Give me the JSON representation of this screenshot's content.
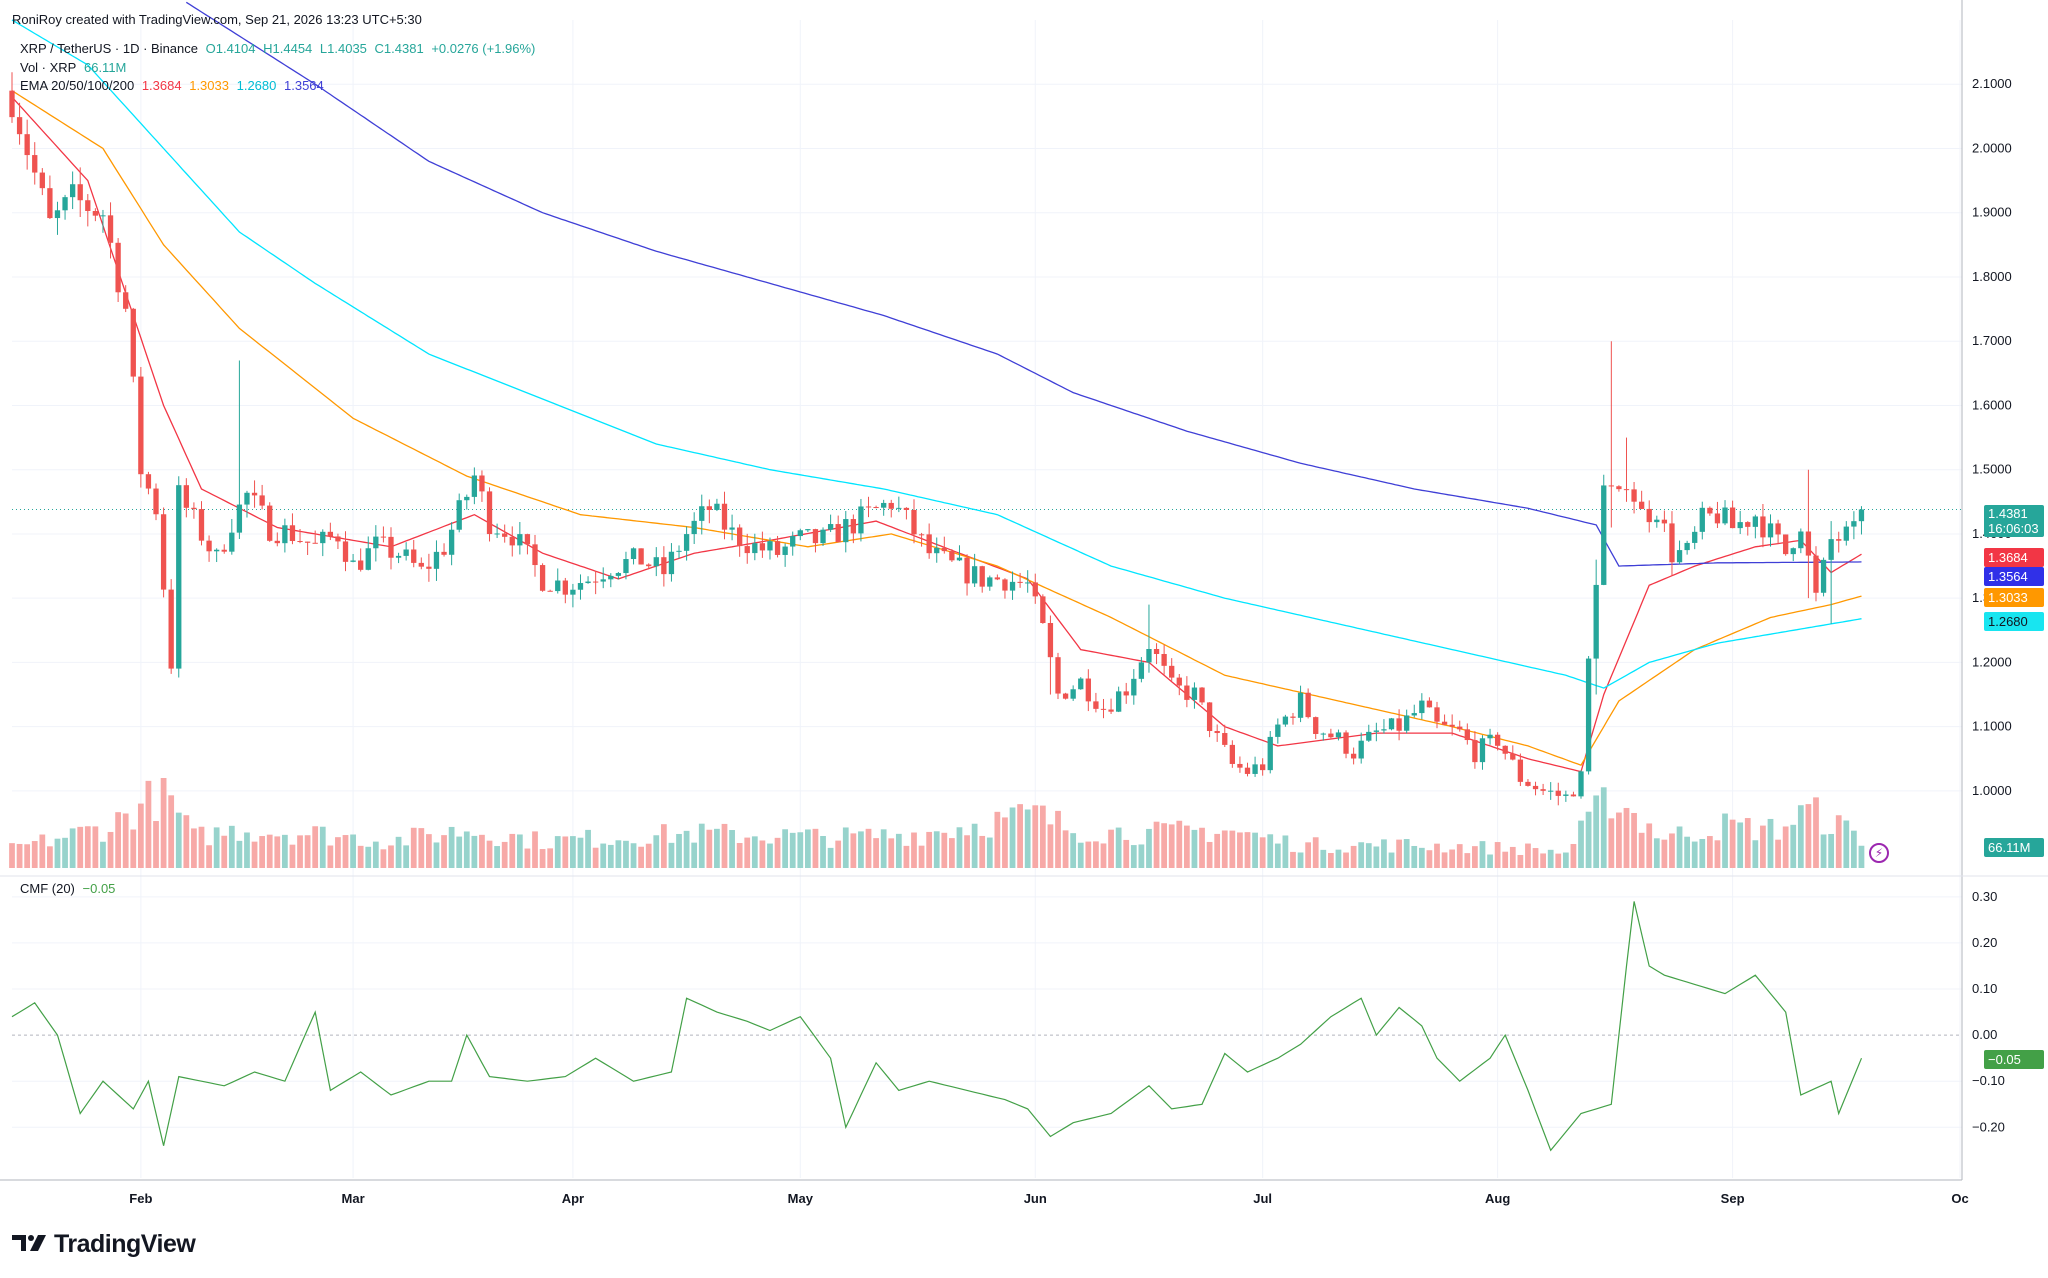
{
  "header": {
    "credit": "RoniRoy created with TradingView.com, Sep 21, 2026 13:23 UTC+5:30"
  },
  "legend": {
    "symbol": "XRP / TetherUS · 1D · Binance",
    "open": "O1.4104",
    "high": "H1.4454",
    "low": "L1.4035",
    "close": "C1.4381",
    "change": "+0.0276 (+1.96%)",
    "vol_label": "Vol · XRP",
    "vol_value": "66.11M",
    "ema_label": "EMA 20/50/100/200",
    "ema_values": [
      "1.3684",
      "1.3033",
      "1.2680",
      "1.3564"
    ],
    "cmf_label": "CMF (20)",
    "cmf_value": "−0.05"
  },
  "price_tags": {
    "last": "1.4381",
    "countdown": "16:06:03",
    "ema20": "1.3684",
    "ema200": "1.3564",
    "ema50": "1.3033",
    "ema100": "1.2680",
    "volume": "66.11M",
    "cmf": "−0.05"
  },
  "colors": {
    "up": "#26a69a",
    "down": "#ef5350",
    "vol_up": "#97d3cc",
    "vol_down": "#f7a9a7",
    "ema20": "#f23645",
    "ema50": "#ff9800",
    "ema100": "#00e5ff",
    "ema200": "#3f3fd6",
    "cmf": "#43a047"
  },
  "brand": {
    "name": "TradingView",
    "icon": "tradingview-logo-icon"
  },
  "chart_data": {
    "type": "candlestick",
    "title": "XRP / TetherUS · 1D · Binance",
    "x_axis": {
      "ticks": [
        "Feb",
        "Mar",
        "Apr",
        "May",
        "Jun",
        "Jul",
        "Aug",
        "Sep",
        "Oc"
      ],
      "tick_days": [
        17,
        45,
        74,
        104,
        135,
        165,
        196,
        227,
        257
      ],
      "range_days": [
        0,
        257
      ]
    },
    "y_axis": {
      "ticks": [
        "2.1000",
        "2.0000",
        "1.9000",
        "1.8000",
        "1.7000",
        "1.6000",
        "1.5000",
        "1.4000",
        "1.3000",
        "1.2000",
        "1.1000",
        "1.0000"
      ],
      "range": [
        0.88,
        2.2
      ]
    },
    "cmf_axis": {
      "ticks": [
        "0.30",
        "0.20",
        "0.10",
        "0.00",
        "−0.10",
        "−0.20"
      ],
      "range": [
        -0.31,
        0.33
      ]
    },
    "close_anchors": [
      [
        0,
        2.08
      ],
      [
        3,
        1.96
      ],
      [
        5,
        1.88
      ],
      [
        8,
        1.92
      ],
      [
        12,
        1.9
      ],
      [
        15,
        1.75
      ],
      [
        17,
        1.5
      ],
      [
        19,
        1.44
      ],
      [
        21,
        1.2
      ],
      [
        22,
        1.46
      ],
      [
        24,
        1.42
      ],
      [
        27,
        1.36
      ],
      [
        29,
        1.42
      ],
      [
        31,
        1.46
      ],
      [
        34,
        1.41
      ],
      [
        37,
        1.4
      ],
      [
        40,
        1.38
      ],
      [
        43,
        1.4
      ],
      [
        45,
        1.35
      ],
      [
        48,
        1.38
      ],
      [
        51,
        1.37
      ],
      [
        54,
        1.34
      ],
      [
        57,
        1.38
      ],
      [
        60,
        1.46
      ],
      [
        61,
        1.49
      ],
      [
        63,
        1.42
      ],
      [
        66,
        1.4
      ],
      [
        70,
        1.33
      ],
      [
        73,
        1.32
      ],
      [
        76,
        1.33
      ],
      [
        79,
        1.35
      ],
      [
        83,
        1.36
      ],
      [
        86,
        1.34
      ],
      [
        89,
        1.4
      ],
      [
        92,
        1.44
      ],
      [
        95,
        1.4
      ],
      [
        98,
        1.38
      ],
      [
        101,
        1.37
      ],
      [
        104,
        1.39
      ],
      [
        107,
        1.39
      ],
      [
        110,
        1.41
      ],
      [
        113,
        1.43
      ],
      [
        116,
        1.45
      ],
      [
        118,
        1.42
      ],
      [
        121,
        1.37
      ],
      [
        124,
        1.35
      ],
      [
        128,
        1.33
      ],
      [
        131,
        1.33
      ],
      [
        134,
        1.32
      ],
      [
        136,
        1.25
      ],
      [
        138,
        1.15
      ],
      [
        141,
        1.17
      ],
      [
        144,
        1.13
      ],
      [
        147,
        1.16
      ],
      [
        150,
        1.23
      ],
      [
        153,
        1.16
      ],
      [
        156,
        1.15
      ],
      [
        159,
        1.08
      ],
      [
        161,
        1.04
      ],
      [
        163,
        1.03
      ],
      [
        165,
        1.04
      ],
      [
        167,
        1.1
      ],
      [
        170,
        1.14
      ],
      [
        172,
        1.1
      ],
      [
        175,
        1.08
      ],
      [
        177,
        1.06
      ],
      [
        180,
        1.09
      ],
      [
        183,
        1.1
      ],
      [
        186,
        1.13
      ],
      [
        188,
        1.1
      ],
      [
        191,
        1.09
      ],
      [
        193,
        1.06
      ],
      [
        196,
        1.08
      ],
      [
        199,
        1.02
      ],
      [
        202,
        1.0
      ],
      [
        205,
        0.99
      ],
      [
        207,
        1.02
      ],
      [
        208,
        1.2
      ],
      [
        210,
        1.47
      ],
      [
        212,
        1.45
      ],
      [
        213,
        1.49
      ],
      [
        215,
        1.43
      ],
      [
        217,
        1.44
      ],
      [
        219,
        1.37
      ],
      [
        221,
        1.37
      ],
      [
        223,
        1.42
      ],
      [
        225,
        1.43
      ],
      [
        227,
        1.41
      ],
      [
        230,
        1.43
      ],
      [
        232,
        1.4
      ],
      [
        234,
        1.37
      ],
      [
        236,
        1.42
      ],
      [
        238,
        1.3
      ],
      [
        240,
        1.39
      ],
      [
        243,
        1.4
      ],
      [
        244,
        1.4381
      ]
    ],
    "spikes": [
      [
        21,
        1.22,
        1.19
      ],
      [
        30,
        1.67,
        1.44
      ],
      [
        137,
        1.25,
        1.15
      ],
      [
        150,
        1.29,
        1.21
      ],
      [
        209,
        1.36,
        1.15
      ],
      [
        211,
        1.7,
        1.41
      ],
      [
        213,
        1.55,
        1.45
      ],
      [
        237,
        1.5,
        1.3
      ],
      [
        240,
        1.42,
        1.26
      ]
    ],
    "volume_anchors": [
      [
        0,
        0.25
      ],
      [
        13,
        0.55
      ],
      [
        16,
        0.75
      ],
      [
        20,
        1.0
      ],
      [
        24,
        0.4
      ],
      [
        30,
        0.5
      ],
      [
        40,
        0.45
      ],
      [
        50,
        0.35
      ],
      [
        60,
        0.5
      ],
      [
        70,
        0.35
      ],
      [
        90,
        0.45
      ],
      [
        110,
        0.4
      ],
      [
        120,
        0.45
      ],
      [
        135,
        0.7
      ],
      [
        140,
        0.5
      ],
      [
        150,
        0.45
      ],
      [
        160,
        0.5
      ],
      [
        170,
        0.3
      ],
      [
        185,
        0.3
      ],
      [
        200,
        0.25
      ],
      [
        205,
        0.2
      ],
      [
        208,
        0.6
      ],
      [
        211,
        0.95
      ],
      [
        214,
        0.7
      ],
      [
        218,
        0.4
      ],
      [
        226,
        0.55
      ],
      [
        233,
        0.5
      ],
      [
        237,
        0.75
      ],
      [
        242,
        0.5
      ],
      [
        244,
        0.4
      ]
    ],
    "cmf_anchors": [
      [
        0,
        0.04
      ],
      [
        3,
        0.07
      ],
      [
        6,
        0.0
      ],
      [
        9,
        -0.17
      ],
      [
        12,
        -0.1
      ],
      [
        16,
        -0.16
      ],
      [
        18,
        -0.1
      ],
      [
        20,
        -0.24
      ],
      [
        22,
        -0.09
      ],
      [
        25,
        -0.1
      ],
      [
        28,
        -0.11
      ],
      [
        32,
        -0.08
      ],
      [
        36,
        -0.1
      ],
      [
        40,
        0.05
      ],
      [
        42,
        -0.12
      ],
      [
        46,
        -0.08
      ],
      [
        50,
        -0.13
      ],
      [
        55,
        -0.1
      ],
      [
        58,
        -0.1
      ],
      [
        60,
        0.0
      ],
      [
        63,
        -0.09
      ],
      [
        68,
        -0.1
      ],
      [
        73,
        -0.09
      ],
      [
        77,
        -0.05
      ],
      [
        82,
        -0.1
      ],
      [
        87,
        -0.08
      ],
      [
        89,
        0.08
      ],
      [
        93,
        0.05
      ],
      [
        97,
        0.03
      ],
      [
        100,
        0.01
      ],
      [
        104,
        0.04
      ],
      [
        108,
        -0.05
      ],
      [
        110,
        -0.2
      ],
      [
        114,
        -0.06
      ],
      [
        117,
        -0.12
      ],
      [
        121,
        -0.1
      ],
      [
        126,
        -0.12
      ],
      [
        131,
        -0.14
      ],
      [
        134,
        -0.16
      ],
      [
        137,
        -0.22
      ],
      [
        140,
        -0.19
      ],
      [
        145,
        -0.17
      ],
      [
        150,
        -0.11
      ],
      [
        153,
        -0.16
      ],
      [
        157,
        -0.15
      ],
      [
        160,
        -0.04
      ],
      [
        163,
        -0.08
      ],
      [
        167,
        -0.05
      ],
      [
        170,
        -0.02
      ],
      [
        174,
        0.04
      ],
      [
        178,
        0.08
      ],
      [
        180,
        0.0
      ],
      [
        183,
        0.06
      ],
      [
        186,
        0.02
      ],
      [
        188,
        -0.05
      ],
      [
        191,
        -0.1
      ],
      [
        195,
        -0.05
      ],
      [
        197,
        0.0
      ],
      [
        200,
        -0.12
      ],
      [
        203,
        -0.25
      ],
      [
        207,
        -0.17
      ],
      [
        211,
        -0.15
      ],
      [
        213,
        0.15
      ],
      [
        214,
        0.29
      ],
      [
        216,
        0.15
      ],
      [
        218,
        0.13
      ],
      [
        222,
        0.11
      ],
      [
        226,
        0.09
      ],
      [
        230,
        0.13
      ],
      [
        234,
        0.05
      ],
      [
        236,
        -0.13
      ],
      [
        240,
        -0.1
      ],
      [
        241,
        -0.17
      ],
      [
        244,
        -0.05
      ]
    ],
    "ema20_anchors": [
      [
        0,
        2.08
      ],
      [
        10,
        1.95
      ],
      [
        20,
        1.6
      ],
      [
        25,
        1.47
      ],
      [
        35,
        1.41
      ],
      [
        50,
        1.38
      ],
      [
        61,
        1.43
      ],
      [
        70,
        1.37
      ],
      [
        80,
        1.33
      ],
      [
        90,
        1.37
      ],
      [
        100,
        1.39
      ],
      [
        114,
        1.42
      ],
      [
        125,
        1.37
      ],
      [
        134,
        1.33
      ],
      [
        141,
        1.22
      ],
      [
        150,
        1.2
      ],
      [
        160,
        1.1
      ],
      [
        167,
        1.07
      ],
      [
        180,
        1.09
      ],
      [
        190,
        1.09
      ],
      [
        200,
        1.05
      ],
      [
        207,
        1.03
      ],
      [
        210,
        1.15
      ],
      [
        216,
        1.32
      ],
      [
        222,
        1.35
      ],
      [
        230,
        1.38
      ],
      [
        236,
        1.39
      ],
      [
        240,
        1.34
      ],
      [
        244,
        1.3684
      ]
    ],
    "ema50_anchors": [
      [
        0,
        2.09
      ],
      [
        12,
        2.0
      ],
      [
        20,
        1.85
      ],
      [
        30,
        1.72
      ],
      [
        45,
        1.58
      ],
      [
        60,
        1.49
      ],
      [
        75,
        1.43
      ],
      [
        90,
        1.41
      ],
      [
        105,
        1.38
      ],
      [
        116,
        1.4
      ],
      [
        130,
        1.35
      ],
      [
        145,
        1.27
      ],
      [
        160,
        1.18
      ],
      [
        175,
        1.14
      ],
      [
        190,
        1.1
      ],
      [
        200,
        1.07
      ],
      [
        207,
        1.04
      ],
      [
        212,
        1.14
      ],
      [
        222,
        1.22
      ],
      [
        232,
        1.27
      ],
      [
        240,
        1.29
      ],
      [
        244,
        1.3033
      ]
    ],
    "ema100_anchors": [
      [
        0,
        2.2
      ],
      [
        10,
        2.13
      ],
      [
        20,
        2.0
      ],
      [
        30,
        1.87
      ],
      [
        40,
        1.79
      ],
      [
        55,
        1.68
      ],
      [
        70,
        1.61
      ],
      [
        85,
        1.54
      ],
      [
        100,
        1.5
      ],
      [
        115,
        1.47
      ],
      [
        130,
        1.43
      ],
      [
        145,
        1.35
      ],
      [
        160,
        1.3
      ],
      [
        175,
        1.26
      ],
      [
        190,
        1.22
      ],
      [
        205,
        1.18
      ],
      [
        210,
        1.16
      ],
      [
        216,
        1.2
      ],
      [
        225,
        1.23
      ],
      [
        235,
        1.25
      ],
      [
        244,
        1.268
      ]
    ],
    "ema200_anchors": [
      [
        0,
        2.38
      ],
      [
        20,
        2.25
      ],
      [
        40,
        2.1
      ],
      [
        55,
        1.98
      ],
      [
        70,
        1.9
      ],
      [
        85,
        1.84
      ],
      [
        100,
        1.79
      ],
      [
        115,
        1.74
      ],
      [
        130,
        1.68
      ],
      [
        140,
        1.62
      ],
      [
        155,
        1.56
      ],
      [
        170,
        1.51
      ],
      [
        185,
        1.47
      ],
      [
        200,
        1.44
      ],
      [
        209,
        1.414
      ],
      [
        212,
        1.35
      ],
      [
        225,
        1.355
      ],
      [
        244,
        1.3564
      ]
    ]
  }
}
